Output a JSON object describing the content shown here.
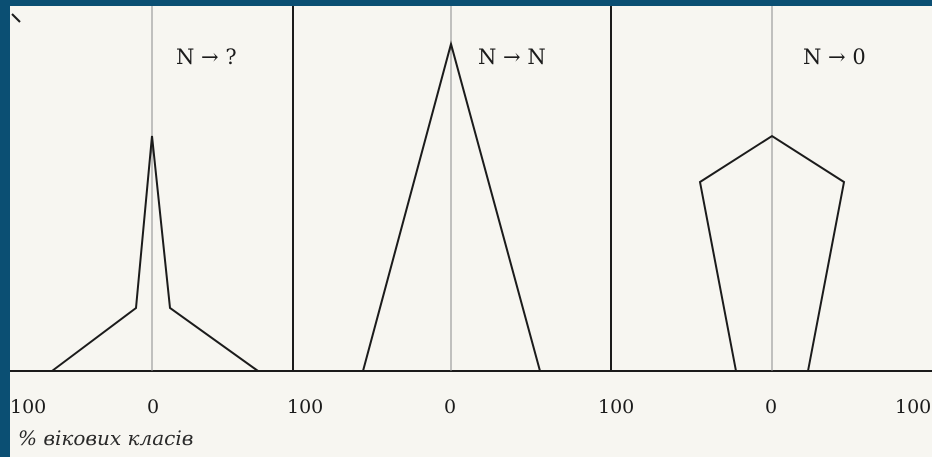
{
  "panels": [
    {
      "title": "N → ?",
      "shape": "narrow spike on wide base"
    },
    {
      "title": "N → N",
      "shape": "triangle"
    },
    {
      "title": "N → 0",
      "shape": "inverted pentagon"
    }
  ],
  "x_tick_labels": [
    "100",
    "0",
    "100",
    "0",
    "100",
    "0",
    "100"
  ],
  "x_axis_caption": "% вікових класів",
  "colors": {
    "background": "#0b4f73",
    "paper": "#f7f6f1",
    "ink": "#1b1b1b",
    "guide": "#8a8a8a"
  }
}
